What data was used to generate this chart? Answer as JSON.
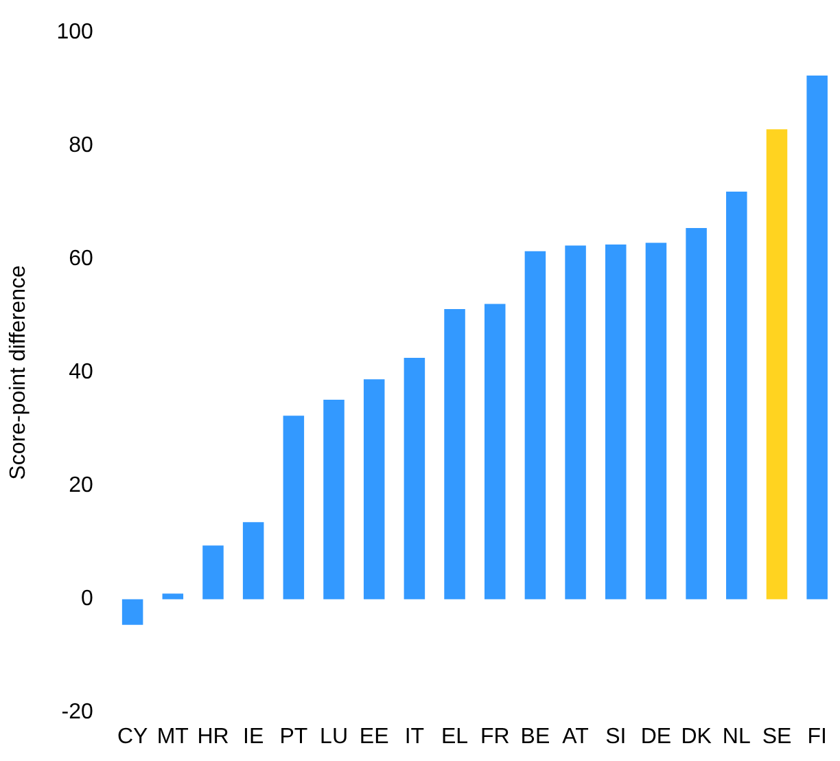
{
  "chart_data": {
    "type": "bar",
    "ylabel": "Score-point difference",
    "categories": [
      "CY",
      "MT",
      "HR",
      "IE",
      "PT",
      "LU",
      "EE",
      "IT",
      "EL",
      "FR",
      "BE",
      "AT",
      "SI",
      "DE",
      "DK",
      "NL",
      "SE",
      "FI"
    ],
    "values": [
      -4.5,
      1,
      9.5,
      13.6,
      32.4,
      35.2,
      38.8,
      42.6,
      51.2,
      52.1,
      61.4,
      62.4,
      62.6,
      62.9,
      65.5,
      71.9,
      82.9,
      92.4
    ],
    "colors": [
      "#3399ff",
      "#3399ff",
      "#3399ff",
      "#3399ff",
      "#3399ff",
      "#3399ff",
      "#3399ff",
      "#3399ff",
      "#3399ff",
      "#3399ff",
      "#3399ff",
      "#3399ff",
      "#3399ff",
      "#3399ff",
      "#3399ff",
      "#3399ff",
      "#ffd320",
      "#3399ff"
    ],
    "ylim": [
      -20,
      100
    ],
    "yticks": [
      -20,
      0,
      20,
      40,
      60,
      80,
      100
    ],
    "grid": false,
    "legend": false
  }
}
